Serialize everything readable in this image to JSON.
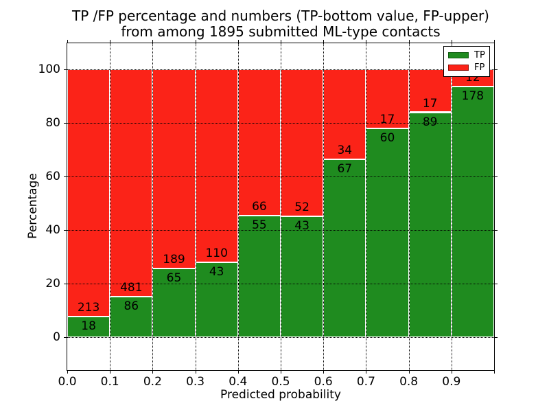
{
  "figure": {
    "title_line1": "TP /FP percentage and numbers (TP-bottom value, FP-upper)",
    "title_line2": "from among 1895 submitted ML-type contacts"
  },
  "chart_data": {
    "type": "bar",
    "stacked": true,
    "orientation": "vertical",
    "title": "TP /FP percentage and numbers (TP-bottom value, FP-upper) from among 1895 submitted ML-type contacts",
    "xlabel": "Predicted probability",
    "ylabel": "Percentage",
    "x_bins": [
      0.0,
      0.1,
      0.2,
      0.3,
      0.4,
      0.5,
      0.6,
      0.7,
      0.8,
      0.9
    ],
    "bin_width": 0.1,
    "series": [
      {
        "name": "TP",
        "color": "#1f8b1f",
        "edge_color": "#ffffff",
        "counts": [
          18,
          86,
          65,
          43,
          55,
          43,
          67,
          60,
          89,
          178
        ]
      },
      {
        "name": "FP",
        "color": "#fb2318",
        "edge_color": "#ffffff",
        "counts": [
          213,
          481,
          189,
          110,
          66,
          52,
          34,
          17,
          17,
          12
        ]
      }
    ],
    "tp_percent_heights": [
      7.8,
      15.2,
      25.6,
      28.1,
      45.5,
      45.3,
      66.3,
      77.9,
      84.0,
      93.7
    ],
    "total_contacts": 1895,
    "xtick_labels": [
      "0.0",
      "0.1",
      "0.2",
      "0.3",
      "0.4",
      "0.5",
      "0.6",
      "0.7",
      "0.8",
      "0.9"
    ],
    "yticks": [
      0,
      20,
      40,
      60,
      80,
      100
    ],
    "ytick_labels": [
      "0",
      "20",
      "40",
      "60",
      "80",
      "100"
    ],
    "xlim": [
      0.0,
      1.0
    ],
    "ylim": [
      -12.2,
      109.7
    ],
    "grid": true,
    "grid_style": "dotted",
    "label_color": "#000000",
    "legend": {
      "position": "upper-right",
      "entries": [
        {
          "label": "TP",
          "color": "#1f8b1f",
          "border": "#0f5c0f"
        },
        {
          "label": "FP",
          "color": "#fb2318",
          "border": "#8f0f08"
        }
      ]
    }
  }
}
